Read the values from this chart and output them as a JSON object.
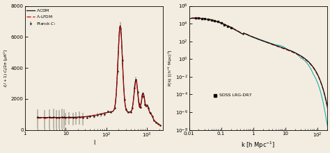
{
  "left_panel": {
    "xlabel": "l",
    "ylabel": "l(l+1) C_l/2\\pi  [\\muK^2]",
    "xlim": [
      1,
      2500
    ],
    "ylim": [
      0,
      8000
    ],
    "yticks": [
      0,
      2000,
      4000,
      6000,
      8000
    ],
    "lcdm_color": "#111111",
    "alfdm_color": "#cc0000",
    "data_color": "#111111"
  },
  "right_panel": {
    "xlabel": "k [h Mpc$^{-1}$]",
    "ylabel": "P(k) [(h$^{-1}$ Mpc)$^3$]",
    "xlim": [
      0.01,
      200
    ],
    "ylim": [
      1e-08,
      1000000.0
    ],
    "lcdm_color": "#111111",
    "alfdm_color": "#cc0000",
    "cyan_color": "#00aaaa",
    "data_color": "#111111"
  },
  "bg_color": "#f2ede0"
}
